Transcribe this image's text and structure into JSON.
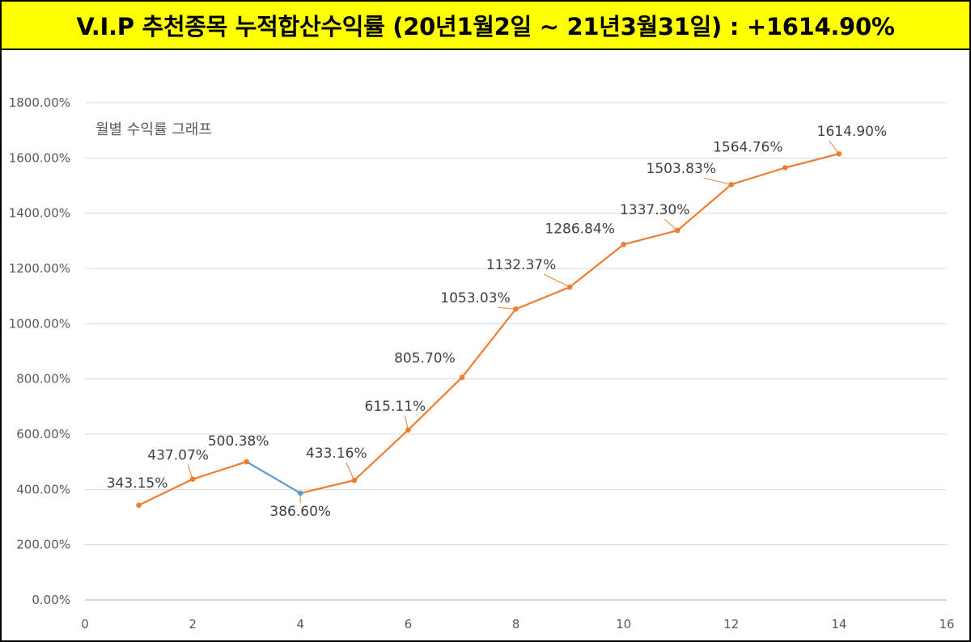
{
  "header": {
    "title": "V.I.P 추천종목 누적합산수익률 (20년1월2일 ~ 21년3월31일) : +1614.90%"
  },
  "colors": {
    "banner_bg": "#ffff00",
    "series": "#ed7d31",
    "highlight_segment": "#5b9bd5",
    "grid": "#d9d9d9",
    "axis": "#bfbfbf"
  },
  "chart_data": {
    "type": "line",
    "title": "월별 수익률 그래프",
    "xlabel": "",
    "ylabel": "",
    "x": [
      1,
      2,
      3,
      4,
      5,
      6,
      7,
      8,
      9,
      10,
      11,
      12,
      13,
      14
    ],
    "values": [
      343.15,
      437.07,
      500.38,
      386.6,
      433.16,
      615.11,
      805.7,
      1053.03,
      1132.37,
      1286.84,
      1337.3,
      1503.83,
      1564.76,
      1614.9
    ],
    "labels": [
      "343.15%",
      "437.07%",
      "500.38%",
      "386.60%",
      "433.16%",
      "615.11%",
      "805.70%",
      "1053.03%",
      "1132.37%",
      "1286.84%",
      "1337.30%",
      "1503.83%",
      "1564.76%",
      "1614.90%"
    ],
    "xlim": [
      0,
      16
    ],
    "ylim": [
      0,
      1800
    ],
    "x_ticks": [
      0,
      2,
      4,
      6,
      8,
      10,
      12,
      14,
      16
    ],
    "x_tick_labels": [
      "0",
      "2",
      "4",
      "6",
      "8",
      "10",
      "12",
      "14",
      "16"
    ],
    "y_ticks": [
      0,
      200,
      400,
      600,
      800,
      1000,
      1200,
      1400,
      1600,
      1800
    ],
    "y_tick_labels": [
      "0.00%",
      "200.00%",
      "400.00%",
      "600.00%",
      "800.00%",
      "1000.00%",
      "1200.00%",
      "1400.00%",
      "1600.00%",
      "1800.00%"
    ],
    "highlight_segment": [
      3,
      4
    ],
    "grid": true
  }
}
